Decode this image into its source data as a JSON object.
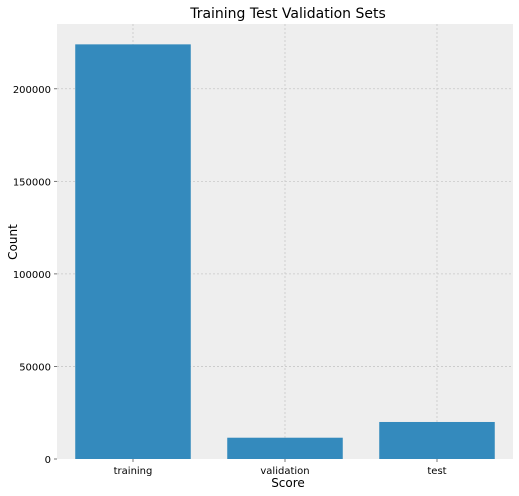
{
  "chart_data": {
    "type": "bar",
    "title": "Training Test Validation Sets",
    "xlabel": "Score",
    "ylabel": "Count",
    "categories": [
      "training",
      "validation",
      "test"
    ],
    "values": [
      224000,
      11500,
      20000
    ],
    "ylim": [
      0,
      235000
    ],
    "yticks": [
      0,
      50000,
      100000,
      150000,
      200000
    ],
    "ytick_labels": [
      "0",
      "50000",
      "100000",
      "150000",
      "200000"
    ],
    "grid": true,
    "legend": "none",
    "colors": {
      "bar": "#348abd",
      "plot_background": "#eeeeee",
      "grid": "#c8c8c8"
    }
  }
}
